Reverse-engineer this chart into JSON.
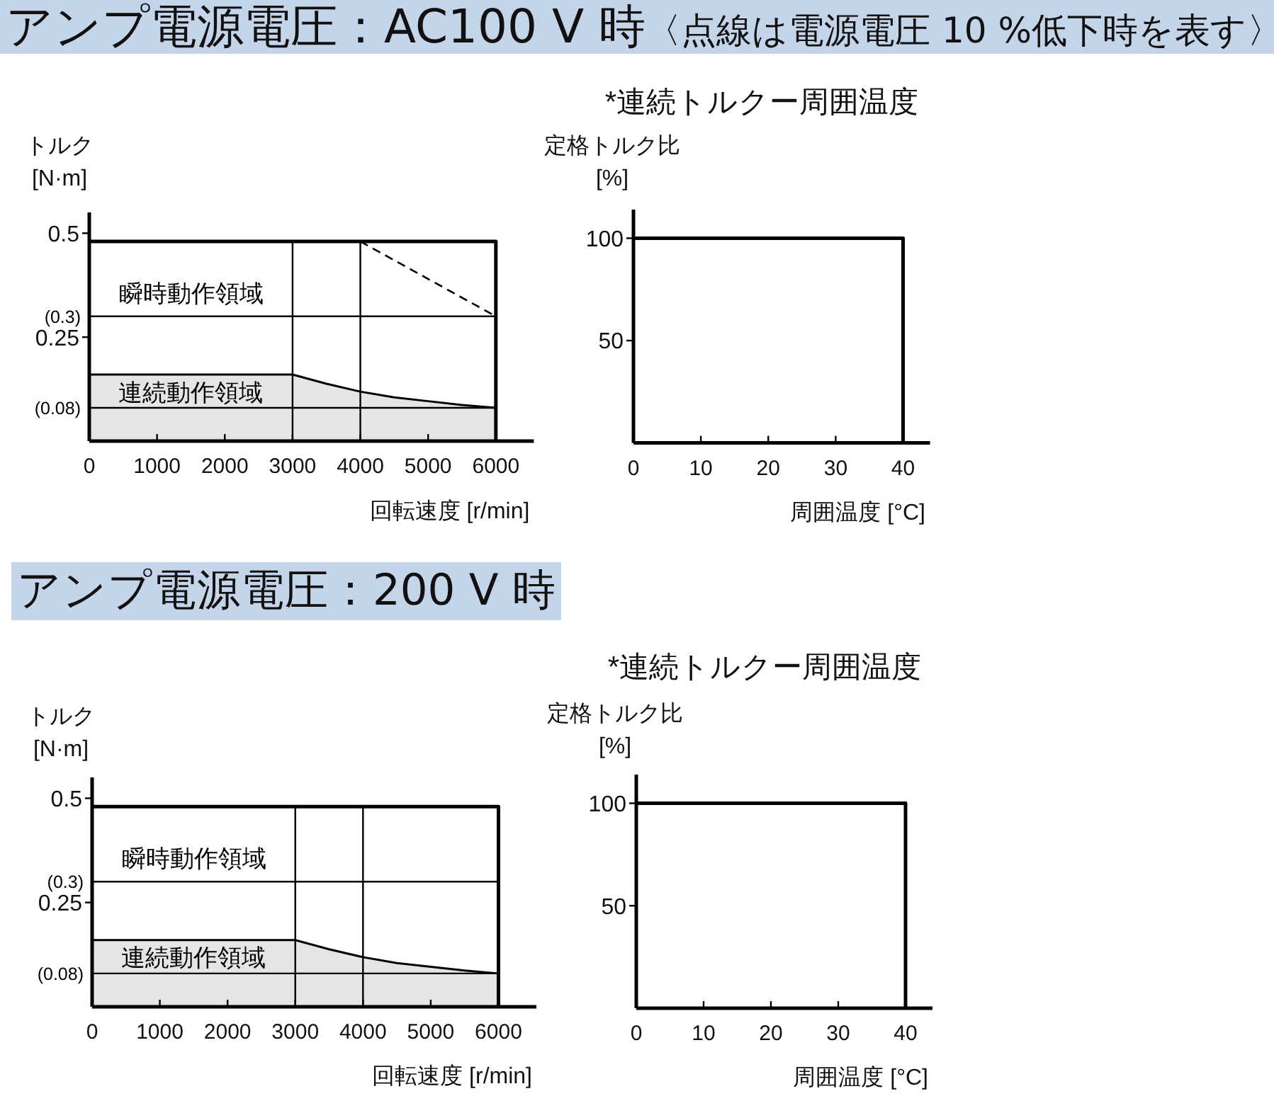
{
  "chart_data": [
    {
      "type": "other",
      "title": "アンプ電源電圧：AC100 V 時",
      "subtitle": "〈点線は電源電圧 10 %低下時を表す〉"
    },
    {
      "type": "line",
      "xlabel": "回転速度 [r/min]",
      "ylabel": "トルク\n[N·m]",
      "xlim": [
        0,
        6560
      ],
      "xticks": [
        0,
        1000,
        2000,
        3000,
        4000,
        5000,
        6000
      ],
      "ylim": [
        0,
        0.55
      ],
      "yticks": [
        0.25,
        0.5
      ],
      "marker": "none",
      "series": [
        {
          "type": "line",
          "color": "#000000",
          "x": [
            0,
            6000,
            6000
          ],
          "values": [
            0.48,
            0.48,
            0
          ]
        },
        {
          "name": "連続動作領域",
          "type": "area",
          "color": "#e5e5e5",
          "x": [
            0,
            3000,
            3500,
            4000,
            4500,
            5000,
            5500,
            6000
          ],
          "values": [
            0.16,
            0.16,
            0.138,
            0.119,
            0.105,
            0.096,
            0.087,
            0.08
          ]
        },
        {
          "type": "line",
          "color": "#000000",
          "line_style": "dashed",
          "x": [
            4000,
            6000
          ],
          "values": [
            0.48,
            0.3
          ]
        }
      ],
      "ref_lines": [
        {
          "axis": "y",
          "value": 0.3,
          "label": "(0.3)"
        },
        {
          "axis": "y",
          "value": 0.08,
          "label": "(0.08)"
        },
        {
          "axis": "x",
          "value": 3000
        },
        {
          "axis": "x",
          "value": 4000
        }
      ],
      "annotations": [
        "瞬時動作領域"
      ]
    },
    {
      "type": "line",
      "title": "*連続トルクー周囲温度",
      "xlabel": "周囲温度 [°C]",
      "ylabel": "定格トルク比\n[%]",
      "xlim": [
        0,
        44
      ],
      "xticks": [
        0,
        10,
        20,
        30,
        40
      ],
      "ylim": [
        0,
        114
      ],
      "yticks": [
        50,
        100
      ],
      "marker": "none",
      "series": [
        {
          "color": "#000000",
          "x": [
            0,
            40,
            40
          ],
          "values": [
            100,
            100,
            0
          ]
        }
      ]
    },
    {
      "type": "other",
      "title": "アンプ電源電圧：200 V 時"
    },
    {
      "type": "line",
      "xlabel": "回転速度 [r/min]",
      "ylabel": "トルク\n[N·m]",
      "xlim": [
        0,
        6560
      ],
      "xticks": [
        0,
        1000,
        2000,
        3000,
        4000,
        5000,
        6000
      ],
      "ylim": [
        0,
        0.55
      ],
      "yticks": [
        0.25,
        0.5
      ],
      "marker": "none",
      "series": [
        {
          "type": "line",
          "color": "#000000",
          "x": [
            0,
            6000,
            6000
          ],
          "values": [
            0.48,
            0.48,
            0
          ]
        },
        {
          "name": "連続動作領域",
          "type": "area",
          "color": "#e5e5e5",
          "x": [
            0,
            3000,
            3500,
            4000,
            4500,
            5000,
            5500,
            6000
          ],
          "values": [
            0.16,
            0.16,
            0.138,
            0.119,
            0.105,
            0.096,
            0.087,
            0.08
          ]
        }
      ],
      "ref_lines": [
        {
          "axis": "y",
          "value": 0.3,
          "label": "(0.3)"
        },
        {
          "axis": "y",
          "value": 0.08,
          "label": "(0.08)"
        },
        {
          "axis": "x",
          "value": 3000
        },
        {
          "axis": "x",
          "value": 4000
        }
      ],
      "annotations": [
        "瞬時動作領域"
      ]
    },
    {
      "type": "line",
      "title": "*連続トルクー周囲温度",
      "xlabel": "周囲温度 [°C]",
      "ylabel": "定格トルク比\n[%]",
      "xlim": [
        0,
        44
      ],
      "xticks": [
        0,
        10,
        20,
        30,
        40
      ],
      "ylim": [
        0,
        114
      ],
      "yticks": [
        50,
        100
      ],
      "marker": "none",
      "series": [
        {
          "color": "#000000",
          "x": [
            0,
            40,
            40
          ],
          "values": [
            100,
            100,
            0
          ]
        }
      ]
    }
  ]
}
